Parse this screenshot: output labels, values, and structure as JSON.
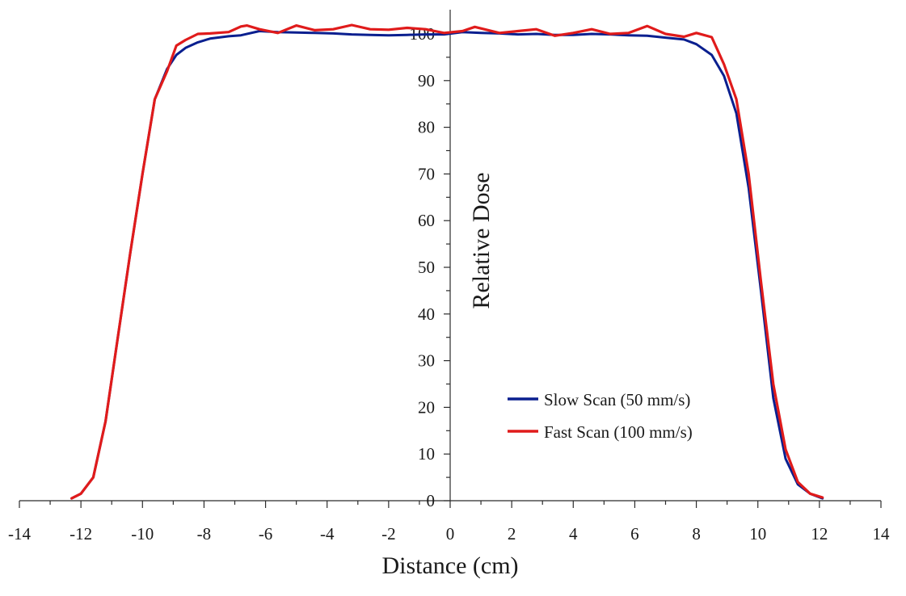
{
  "chart_data": {
    "type": "line",
    "title": "",
    "xlabel": "Distance (cm)",
    "ylabel": "Relative Dose",
    "xlim": [
      -14,
      14
    ],
    "ylim": [
      0,
      100
    ],
    "x_ticks": [
      -14,
      -12,
      -10,
      -8,
      -6,
      -4,
      -2,
      0,
      2,
      4,
      6,
      8,
      10,
      12,
      14
    ],
    "y_ticks": [
      0,
      10,
      20,
      30,
      40,
      50,
      60,
      70,
      80,
      90,
      100
    ],
    "grid": false,
    "legend_position": "lower-right",
    "series": [
      {
        "name": "Slow Scan (50 mm/s)",
        "color": "#0a1f8f",
        "x": [
          -12.3,
          -12.0,
          -11.6,
          -11.2,
          -10.8,
          -10.4,
          -10.0,
          -9.6,
          -9.2,
          -8.9,
          -8.6,
          -8.2,
          -7.8,
          -7.2,
          -6.8,
          -6.2,
          -5.6,
          -5.0,
          -4.4,
          -3.8,
          -3.2,
          -2.6,
          -2.0,
          -1.4,
          -0.8,
          -0.2,
          0.4,
          1.0,
          1.6,
          2.2,
          2.8,
          3.4,
          4.0,
          4.6,
          5.2,
          5.8,
          6.4,
          7.0,
          7.6,
          8.0,
          8.5,
          8.9,
          9.3,
          9.7,
          10.1,
          10.5,
          10.9,
          11.3,
          11.7,
          12.1
        ],
        "values": [
          0.5,
          1.5,
          5,
          17,
          35,
          53,
          70,
          86,
          92.5,
          95.5,
          97,
          98.2,
          99.0,
          99.5,
          99.7,
          100.6,
          100.4,
          100.3,
          100.2,
          100.1,
          99.9,
          99.8,
          99.7,
          99.8,
          99.9,
          99.9,
          100.4,
          100.2,
          100.1,
          99.9,
          100.0,
          99.8,
          99.8,
          100.0,
          99.9,
          99.7,
          99.6,
          99.2,
          98.8,
          97.8,
          95.5,
          91,
          83,
          67,
          45,
          22,
          9,
          3.5,
          1.5,
          0.5
        ]
      },
      {
        "name": "Fast Scan (100 mm/s)",
        "color": "#e01b1b",
        "x": [
          -12.3,
          -12.0,
          -11.6,
          -11.2,
          -10.8,
          -10.4,
          -10.0,
          -9.6,
          -9.2,
          -8.9,
          -8.6,
          -8.2,
          -7.8,
          -7.2,
          -6.8,
          -6.6,
          -6.2,
          -5.6,
          -5.0,
          -4.4,
          -3.8,
          -3.2,
          -2.6,
          -2.0,
          -1.4,
          -0.8,
          -0.2,
          0.4,
          0.8,
          1.6,
          2.2,
          2.8,
          3.4,
          4.0,
          4.6,
          5.2,
          5.8,
          6.4,
          7.0,
          7.6,
          8.0,
          8.5,
          8.9,
          9.3,
          9.7,
          10.1,
          10.5,
          10.9,
          11.3,
          11.7,
          12.1
        ],
        "values": [
          0.5,
          1.5,
          5,
          17,
          35,
          53,
          70,
          86,
          92,
          97.5,
          98.7,
          100.0,
          100.1,
          100.4,
          101.6,
          101.8,
          101.0,
          100.2,
          101.8,
          100.8,
          101.0,
          101.9,
          101.0,
          100.9,
          101.3,
          101.0,
          100.2,
          100.6,
          101.5,
          100.2,
          100.6,
          101.0,
          99.6,
          100.2,
          101.0,
          100.0,
          100.2,
          101.7,
          100.0,
          99.4,
          100.2,
          99.3,
          93.5,
          86,
          70,
          47,
          25,
          11,
          4,
          1.5,
          0.7
        ]
      }
    ]
  }
}
